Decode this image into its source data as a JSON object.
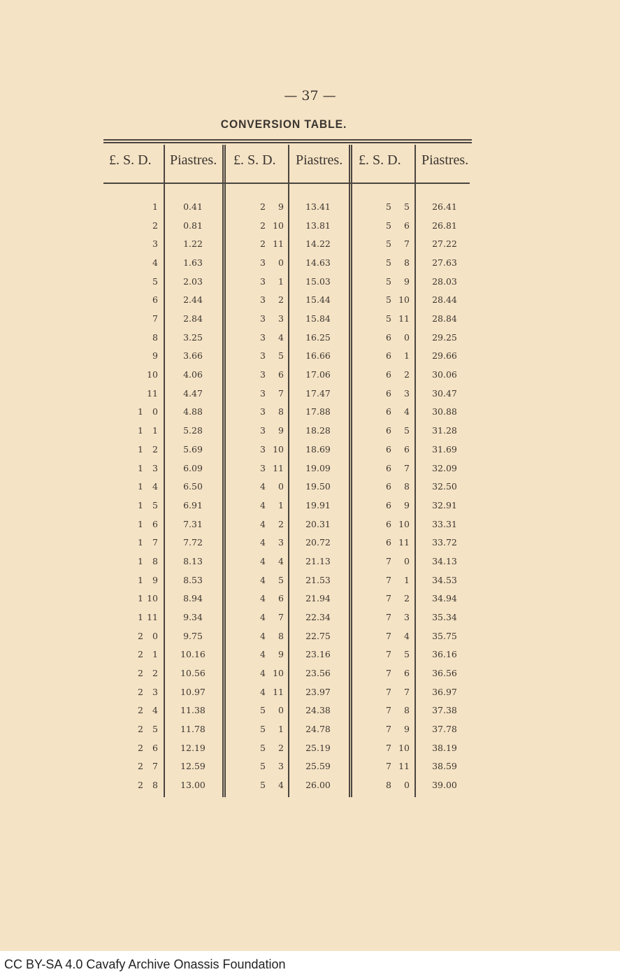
{
  "page_number": "— 37 —",
  "title": "CONVERSION TABLE.",
  "headers": [
    "£. S. D.",
    "Piastres.",
    "£. S. D.",
    "Piastres.",
    "£. S. D.",
    "Piastres."
  ],
  "groups": [
    [
      [
        "",
        "1",
        "0.41"
      ],
      [
        "",
        "2",
        "0.81"
      ],
      [
        "",
        "3",
        "1.22"
      ],
      [
        "",
        "4",
        "1.63"
      ],
      [
        "",
        "5",
        "2.03"
      ],
      [
        "",
        "6",
        "2.44"
      ],
      [
        "",
        "7",
        "2.84"
      ],
      [
        "",
        "8",
        "3.25"
      ],
      [
        "",
        "9",
        "3.66"
      ],
      [
        "",
        "10",
        "4.06"
      ],
      [
        "",
        "11",
        "4.47"
      ],
      [
        "1",
        "0",
        "4.88"
      ],
      [
        "1",
        "1",
        "5.28"
      ],
      [
        "1",
        "2",
        "5.69"
      ],
      [
        "1",
        "3",
        "6.09"
      ],
      [
        "1",
        "4",
        "6.50"
      ],
      [
        "1",
        "5",
        "6.91"
      ],
      [
        "1",
        "6",
        "7.31"
      ],
      [
        "1",
        "7",
        "7.72"
      ],
      [
        "1",
        "8",
        "8.13"
      ],
      [
        "1",
        "9",
        "8.53"
      ],
      [
        "1",
        "10",
        "8.94"
      ],
      [
        "1",
        "11",
        "9.34"
      ],
      [
        "2",
        "0",
        "9.75"
      ],
      [
        "2",
        "1",
        "10.16"
      ],
      [
        "2",
        "2",
        "10.56"
      ],
      [
        "2",
        "3",
        "10.97"
      ],
      [
        "2",
        "4",
        "11.38"
      ],
      [
        "2",
        "5",
        "11.78"
      ],
      [
        "2",
        "6",
        "12.19"
      ],
      [
        "2",
        "7",
        "12.59"
      ],
      [
        "2",
        "8",
        "13.00"
      ]
    ],
    [
      [
        "2",
        "9",
        "13.41"
      ],
      [
        "2",
        "10",
        "13.81"
      ],
      [
        "2",
        "11",
        "14.22"
      ],
      [
        "3",
        "0",
        "14.63"
      ],
      [
        "3",
        "1",
        "15.03"
      ],
      [
        "3",
        "2",
        "15.44"
      ],
      [
        "3",
        "3",
        "15.84"
      ],
      [
        "3",
        "4",
        "16.25"
      ],
      [
        "3",
        "5",
        "16.66"
      ],
      [
        "3",
        "6",
        "17.06"
      ],
      [
        "3",
        "7",
        "17.47"
      ],
      [
        "3",
        "8",
        "17.88"
      ],
      [
        "3",
        "9",
        "18.28"
      ],
      [
        "3",
        "10",
        "18.69"
      ],
      [
        "3",
        "11",
        "19.09"
      ],
      [
        "4",
        "0",
        "19.50"
      ],
      [
        "4",
        "1",
        "19.91"
      ],
      [
        "4",
        "2",
        "20.31"
      ],
      [
        "4",
        "3",
        "20.72"
      ],
      [
        "4",
        "4",
        "21.13"
      ],
      [
        "4",
        "5",
        "21.53"
      ],
      [
        "4",
        "6",
        "21.94"
      ],
      [
        "4",
        "7",
        "22.34"
      ],
      [
        "4",
        "8",
        "22.75"
      ],
      [
        "4",
        "9",
        "23.16"
      ],
      [
        "4",
        "10",
        "23.56"
      ],
      [
        "4",
        "11",
        "23.97"
      ],
      [
        "5",
        "0",
        "24.38"
      ],
      [
        "5",
        "1",
        "24.78"
      ],
      [
        "5",
        "2",
        "25.19"
      ],
      [
        "5",
        "3",
        "25.59"
      ],
      [
        "5",
        "4",
        "26.00"
      ]
    ],
    [
      [
        "5",
        "5",
        "26.41"
      ],
      [
        "5",
        "6",
        "26.81"
      ],
      [
        "5",
        "7",
        "27.22"
      ],
      [
        "5",
        "8",
        "27.63"
      ],
      [
        "5",
        "9",
        "28.03"
      ],
      [
        "5",
        "10",
        "28.44"
      ],
      [
        "5",
        "11",
        "28.84"
      ],
      [
        "6",
        "0",
        "29.25"
      ],
      [
        "6",
        "1",
        "29.66"
      ],
      [
        "6",
        "2",
        "30.06"
      ],
      [
        "6",
        "3",
        "30.47"
      ],
      [
        "6",
        "4",
        "30.88"
      ],
      [
        "6",
        "5",
        "31.28"
      ],
      [
        "6",
        "6",
        "31.69"
      ],
      [
        "6",
        "7",
        "32.09"
      ],
      [
        "6",
        "8",
        "32.50"
      ],
      [
        "6",
        "9",
        "32.91"
      ],
      [
        "6",
        "10",
        "33.31"
      ],
      [
        "6",
        "11",
        "33.72"
      ],
      [
        "7",
        "0",
        "34.13"
      ],
      [
        "7",
        "1",
        "34.53"
      ],
      [
        "7",
        "2",
        "34.94"
      ],
      [
        "7",
        "3",
        "35.34"
      ],
      [
        "7",
        "4",
        "35.75"
      ],
      [
        "7",
        "5",
        "36.16"
      ],
      [
        "7",
        "6",
        "36.56"
      ],
      [
        "7",
        "7",
        "36.97"
      ],
      [
        "7",
        "8",
        "37.38"
      ],
      [
        "7",
        "9",
        "37.78"
      ],
      [
        "7",
        "10",
        "38.19"
      ],
      [
        "7",
        "11",
        "38.59"
      ],
      [
        "8",
        "0",
        "39.00"
      ]
    ]
  ],
  "footer": "CC BY-SA 4.0 Cavafy Archive Onassis Foundation"
}
